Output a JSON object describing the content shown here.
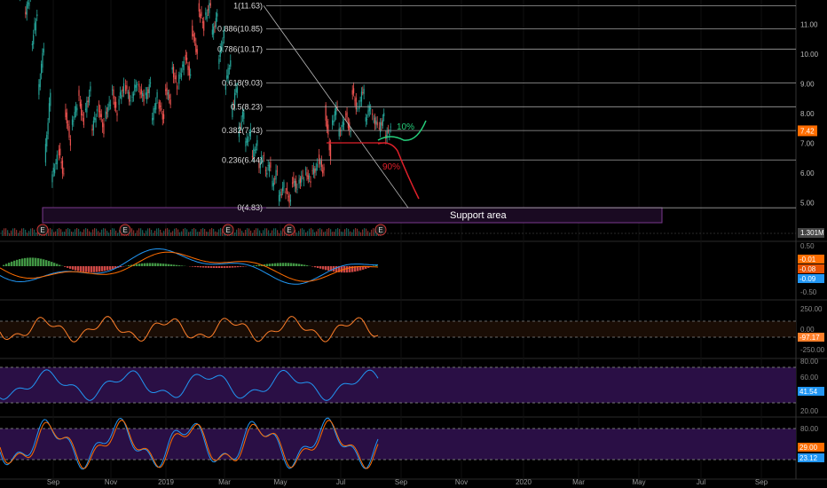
{
  "chart_data": {
    "type": "candlestick",
    "x_axis": {
      "labels": [
        "Sep",
        "Nov",
        "2019",
        "Mar",
        "May",
        "Jul",
        "Sep",
        "Nov",
        "2020",
        "Mar",
        "May",
        "Jul",
        "Sep"
      ]
    },
    "main_panel": {
      "price_ticks": [
        "11.00",
        "10.00",
        "9.00",
        "8.00",
        "7.00",
        "6.00",
        "5.00"
      ],
      "last_price": "7.42",
      "volume_label": "1.301M",
      "fib_levels": [
        {
          "label": "1(11.63)",
          "value": 11.63
        },
        {
          "label": "0.886(10.85)",
          "value": 10.85
        },
        {
          "label": "0.786(10.17)",
          "value": 10.17
        },
        {
          "label": "0.618(9.03)",
          "value": 9.03
        },
        {
          "label": "0.5(8.23)",
          "value": 8.23
        },
        {
          "label": "0.382(7.43)",
          "value": 7.43
        },
        {
          "label": "0.236(6.44)",
          "value": 6.44
        },
        {
          "label": "0(4.83)",
          "value": 4.83
        }
      ],
      "annotations": {
        "up_scenario": "10%",
        "down_scenario": "90%",
        "support_area": "Support area"
      },
      "earnings_marker": "E",
      "candles": [
        [
          "2018-07-20",
          12.2,
          12.6
        ],
        [
          "2018-07-27",
          11.9,
          12.3
        ],
        [
          "2018-08-03",
          11.3,
          12.0
        ],
        [
          "2018-08-10",
          10.2,
          11.4
        ],
        [
          "2018-08-17",
          8.6,
          10.3
        ],
        [
          "2018-08-24",
          6.4,
          8.7
        ],
        [
          "2018-08-31",
          5.8,
          6.5
        ],
        [
          "2018-09-07",
          6.9,
          5.9
        ],
        [
          "2018-09-14",
          8.2,
          7.0
        ],
        [
          "2018-09-21",
          7.6,
          8.3
        ],
        [
          "2018-09-28",
          8.7,
          7.6
        ],
        [
          "2018-10-05",
          8.0,
          8.8
        ],
        [
          "2018-10-12",
          7.4,
          8.1
        ],
        [
          "2018-10-19",
          8.3,
          7.4
        ],
        [
          "2018-10-26",
          7.9,
          8.4
        ],
        [
          "2018-11-02",
          8.9,
          7.9
        ],
        [
          "2018-11-09",
          8.4,
          8.9
        ],
        [
          "2018-11-16",
          9.0,
          8.4
        ],
        [
          "2018-11-23",
          8.5,
          9.1
        ],
        [
          "2018-11-30",
          8.9,
          8.5
        ],
        [
          "2018-12-07",
          8.5,
          9.0
        ],
        [
          "2018-12-14",
          7.7,
          8.6
        ],
        [
          "2018-12-21",
          8.4,
          7.8
        ],
        [
          "2018-12-28",
          8.9,
          8.4
        ],
        [
          "2019-01-04",
          9.6,
          8.9
        ],
        [
          "2019-01-11",
          9.1,
          9.7
        ],
        [
          "2019-01-18",
          10.0,
          9.2
        ],
        [
          "2019-01-25",
          10.9,
          10.0
        ],
        [
          "2019-02-01",
          11.6,
          10.9
        ],
        [
          "2019-02-08",
          11.2,
          11.7
        ],
        [
          "2019-02-15",
          10.6,
          11.3
        ],
        [
          "2019-02-22",
          9.7,
          10.7
        ],
        [
          "2019-03-01",
          8.9,
          9.8
        ],
        [
          "2019-03-08",
          8.0,
          9.0
        ],
        [
          "2019-03-15",
          7.3,
          8.1
        ],
        [
          "2019-03-22",
          6.9,
          7.4
        ],
        [
          "2019-03-29",
          6.5,
          7.0
        ],
        [
          "2019-04-05",
          6.2,
          6.6
        ],
        [
          "2019-04-12",
          6.0,
          6.3
        ],
        [
          "2019-04-19",
          5.5,
          6.1
        ],
        [
          "2019-04-26",
          5.1,
          5.6
        ],
        [
          "2019-05-03",
          5.5,
          5.0
        ],
        [
          "2019-05-10",
          5.8,
          5.5
        ],
        [
          "2019-05-17",
          5.7,
          5.9
        ],
        [
          "2019-05-24",
          6.1,
          5.7
        ],
        [
          "2019-05-31",
          6.0,
          6.2
        ],
        [
          "2019-06-07",
          6.5,
          6.0
        ],
        [
          "2019-06-14",
          8.2,
          6.5
        ],
        [
          "2019-06-21",
          7.6,
          8.3
        ],
        [
          "2019-06-28",
          7.3,
          7.7
        ],
        [
          "2019-07-05",
          8.1,
          7.3
        ],
        [
          "2019-07-12",
          8.9,
          8.1
        ],
        [
          "2019-07-19",
          8.2,
          8.9
        ],
        [
          "2019-07-26",
          7.7,
          8.3
        ],
        [
          "2019-08-02",
          7.9,
          7.6
        ],
        [
          "2019-08-09",
          7.4,
          7.9
        ],
        [
          "2019-08-16",
          7.2,
          7.5
        ]
      ]
    },
    "macd_panel": {
      "ticks": [
        "0.50",
        "-0.50"
      ],
      "badges": [
        "-0.01",
        "-0.08",
        "-0.09"
      ]
    },
    "cci_panel": {
      "ticks": [
        "250.00",
        "0.00",
        "-250.00"
      ],
      "badges": [
        "-97.17"
      ]
    },
    "rsi_panel": {
      "ticks": [
        "80.00",
        "60.00",
        "40.00",
        "20.00"
      ],
      "badges": [
        "41.54"
      ]
    },
    "stoch_panel": {
      "ticks": [
        "80.00",
        "20.00"
      ],
      "badges": [
        "29.00",
        "23.12"
      ]
    },
    "colors": {
      "background": "#000000",
      "up": "#26a69a",
      "down": "#ef5350",
      "fib_line": "#a0a0a0",
      "macd": "#2196f3",
      "signal": "#ff6d00",
      "cci": "#ff7f2a",
      "rsi": "#2196f3",
      "stoch_k": "#2196f3",
      "stoch_d": "#ff6d00",
      "purple_band": "#2a0f45",
      "price_badge": "#ff6d00",
      "up_path": "#26d07c",
      "down_path": "#e0202a"
    }
  }
}
